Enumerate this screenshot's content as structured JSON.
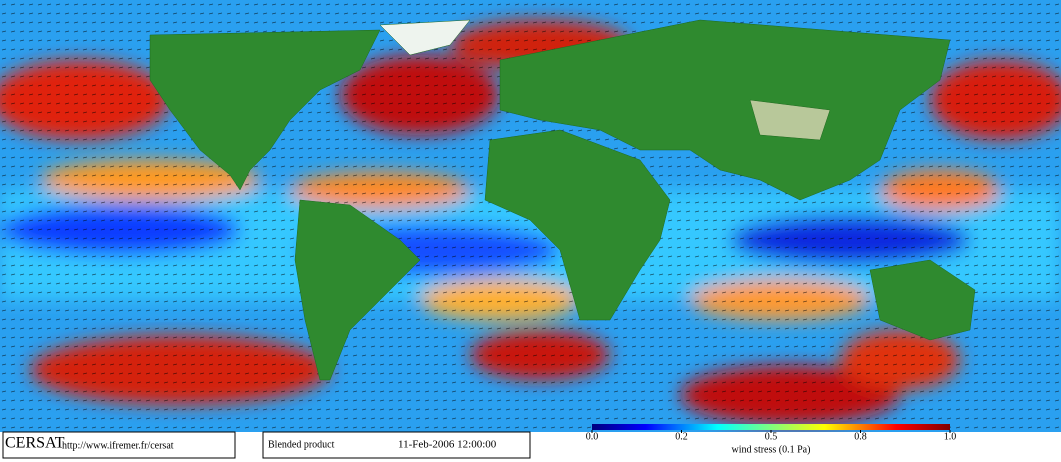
{
  "logo": "CERSAT",
  "url": "http://www.ifremer.fr/cersat",
  "product": "Blended product",
  "timestamp": "11-Feb-2006 12:00:00",
  "colorbar": {
    "label": "wind stress (0.1 Pa)",
    "lim": [
      0,
      1
    ],
    "ticks": [
      {
        "value": 0,
        "label": "0.0"
      },
      {
        "value": 0.25,
        "label": "0.2"
      },
      {
        "value": 0.5,
        "label": "0.5"
      },
      {
        "value": 0.75,
        "label": "0.8"
      },
      {
        "value": 1,
        "label": "1.0"
      }
    ]
  }
}
